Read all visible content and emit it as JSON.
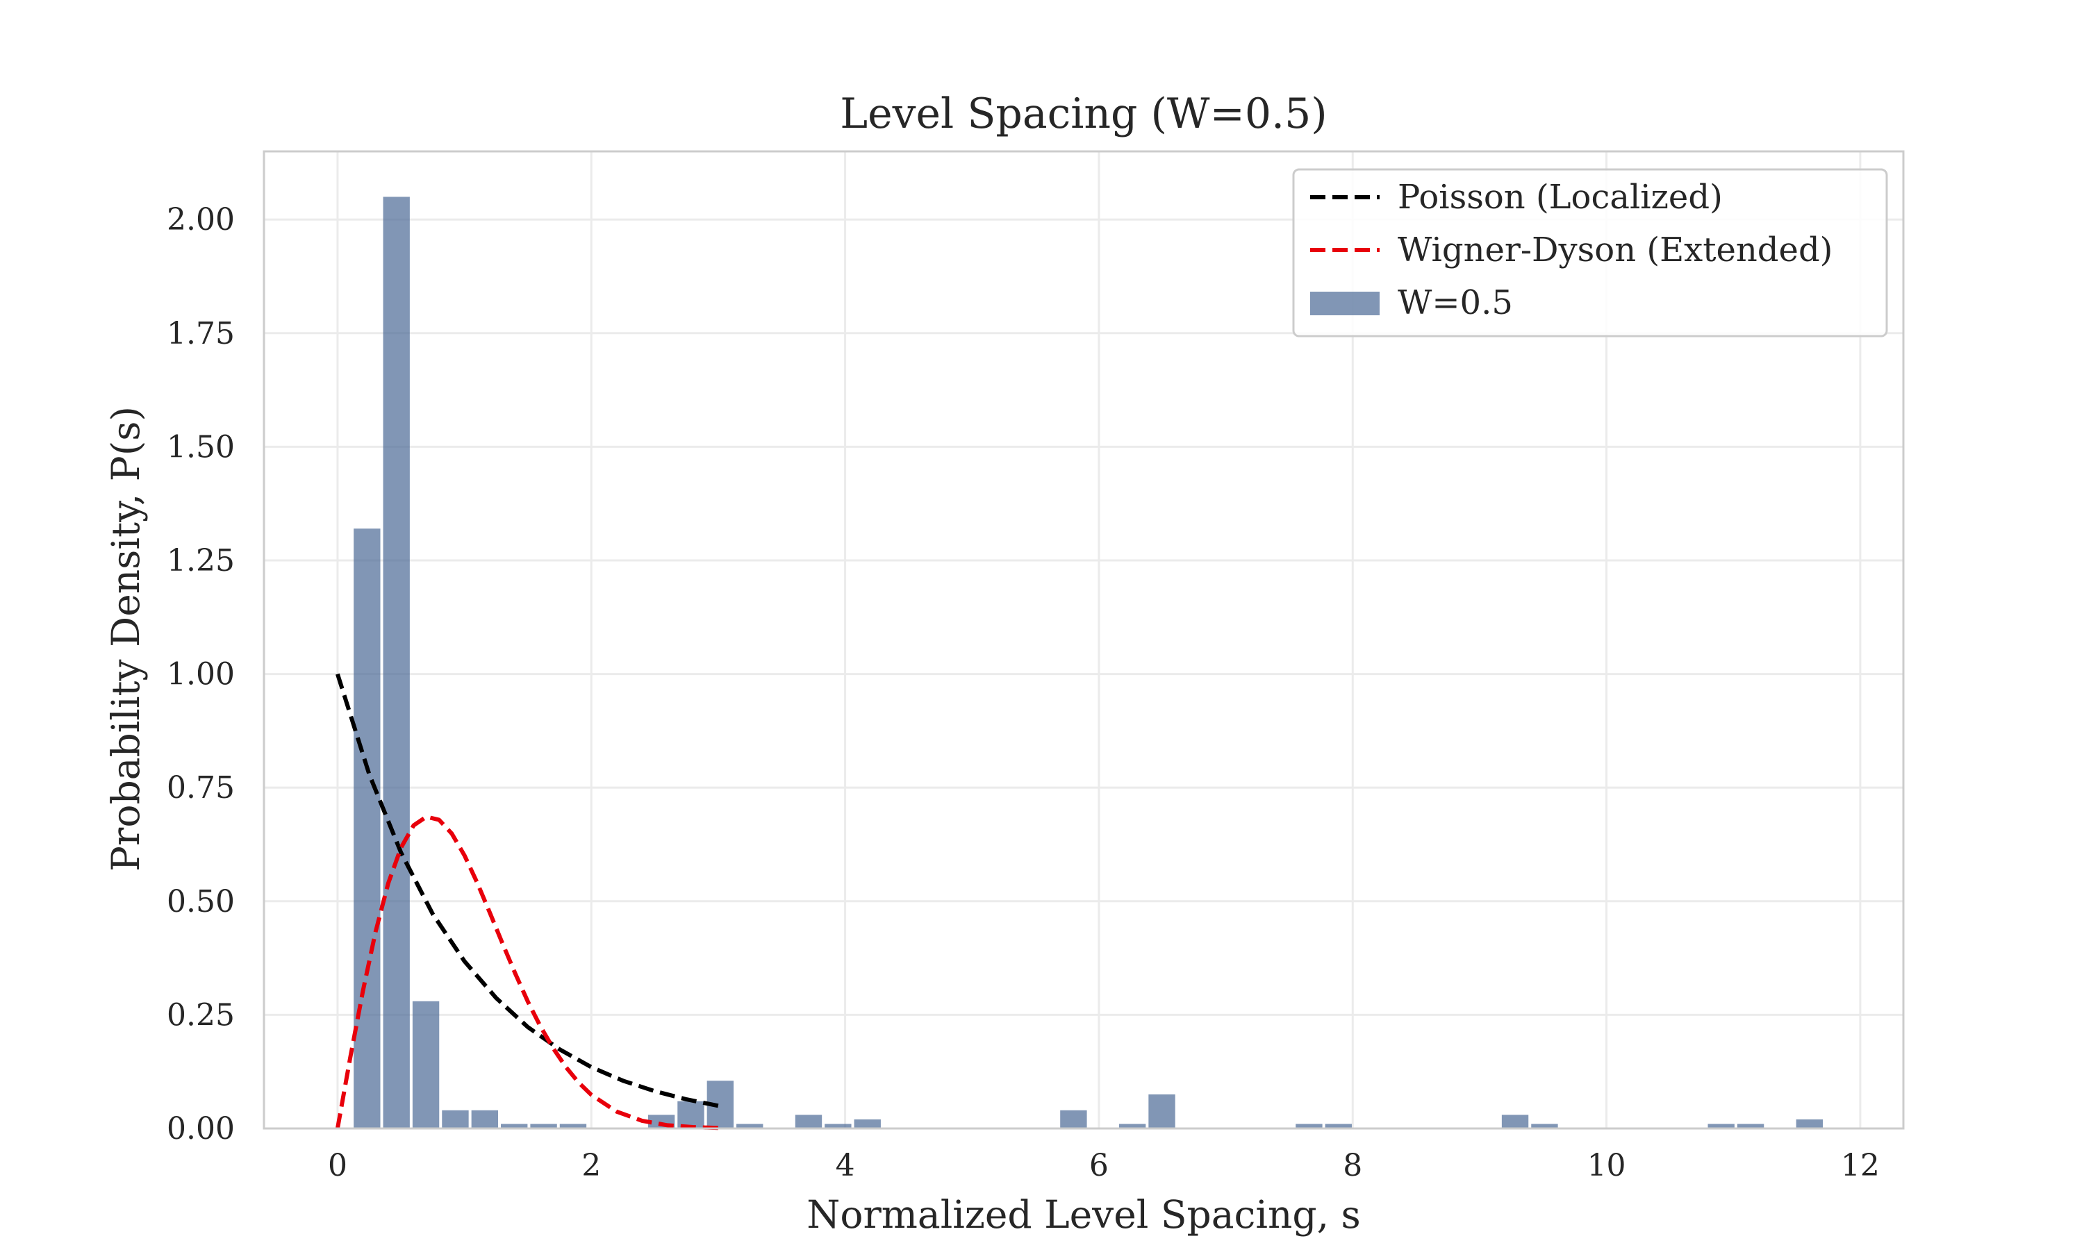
{
  "chart_data": {
    "type": "bar",
    "title": "Level Spacing (W=0.5)",
    "xlabel": "Normalized Level Spacing, s",
    "ylabel": "Probability Density, P(s)",
    "xlim": [
      -0.58,
      12.34
    ],
    "ylim": [
      0,
      2.15
    ],
    "xticks": [
      0,
      2,
      4,
      6,
      8,
      10,
      12
    ],
    "xtick_labels": [
      "0",
      "2",
      "4",
      "6",
      "8",
      "10",
      "12"
    ],
    "yticks": [
      0,
      0.25,
      0.5,
      0.75,
      1.0,
      1.25,
      1.5,
      1.75,
      2.0
    ],
    "ytick_labels": [
      "0.00",
      "0.25",
      "0.50",
      "0.75",
      "1.00",
      "1.25",
      "1.50",
      "1.75",
      "2.00"
    ],
    "grid": true,
    "legend_position": "top-right",
    "bin_width": 0.232,
    "histogram": {
      "name": "W=0.5",
      "color": "#4c6a96",
      "bins": [
        {
          "x0": 0.116,
          "value": 1.32
        },
        {
          "x0": 0.348,
          "value": 2.05
        },
        {
          "x0": 0.58,
          "value": 0.28
        },
        {
          "x0": 0.812,
          "value": 0.04
        },
        {
          "x0": 1.044,
          "value": 0.04
        },
        {
          "x0": 1.276,
          "value": 0.01
        },
        {
          "x0": 1.508,
          "value": 0.01
        },
        {
          "x0": 1.74,
          "value": 0.01
        },
        {
          "x0": 2.436,
          "value": 0.03
        },
        {
          "x0": 2.668,
          "value": 0.06
        },
        {
          "x0": 2.9,
          "value": 0.105
        },
        {
          "x0": 3.132,
          "value": 0.01
        },
        {
          "x0": 3.596,
          "value": 0.03
        },
        {
          "x0": 3.828,
          "value": 0.01
        },
        {
          "x0": 4.06,
          "value": 0.02
        },
        {
          "x0": 5.684,
          "value": 0.04
        },
        {
          "x0": 6.148,
          "value": 0.01
        },
        {
          "x0": 6.38,
          "value": 0.075
        },
        {
          "x0": 7.54,
          "value": 0.01
        },
        {
          "x0": 7.772,
          "value": 0.01
        },
        {
          "x0": 9.164,
          "value": 0.03
        },
        {
          "x0": 9.396,
          "value": 0.01
        },
        {
          "x0": 10.788,
          "value": 0.01
        },
        {
          "x0": 11.02,
          "value": 0.01
        },
        {
          "x0": 11.484,
          "value": 0.02
        }
      ]
    },
    "series": [
      {
        "name": "Poisson (Localized)",
        "color": "#000000",
        "style": "dashed",
        "x": [
          0,
          0.25,
          0.5,
          0.75,
          1.0,
          1.25,
          1.5,
          1.75,
          2.0,
          2.25,
          2.5,
          2.75,
          3.0
        ],
        "y": [
          1.0,
          0.779,
          0.607,
          0.472,
          0.368,
          0.287,
          0.223,
          0.174,
          0.135,
          0.105,
          0.082,
          0.064,
          0.05
        ]
      },
      {
        "name": "Wigner-Dyson (Extended)",
        "color": "#e8000b",
        "style": "dashed",
        "x": [
          0,
          0.1,
          0.2,
          0.3,
          0.4,
          0.5,
          0.6,
          0.7,
          0.8,
          0.9,
          1.0,
          1.1,
          1.2,
          1.3,
          1.4,
          1.5,
          1.6,
          1.7,
          1.8,
          1.9,
          2.0,
          2.2,
          2.4,
          2.6,
          2.8,
          3.0
        ],
        "y": [
          0,
          0.156,
          0.303,
          0.433,
          0.54,
          0.618,
          0.667,
          0.686,
          0.679,
          0.649,
          0.601,
          0.541,
          0.475,
          0.407,
          0.341,
          0.279,
          0.224,
          0.176,
          0.135,
          0.101,
          0.074,
          0.037,
          0.017,
          0.007,
          0.003,
          0.001
        ]
      }
    ],
    "legend": [
      {
        "label": "Poisson (Localized)",
        "kind": "line",
        "color": "#000000"
      },
      {
        "label": "Wigner-Dyson (Extended)",
        "kind": "line",
        "color": "#e8000b"
      },
      {
        "label": "W=0.5",
        "kind": "patch",
        "color": "#4c6a96"
      }
    ]
  }
}
